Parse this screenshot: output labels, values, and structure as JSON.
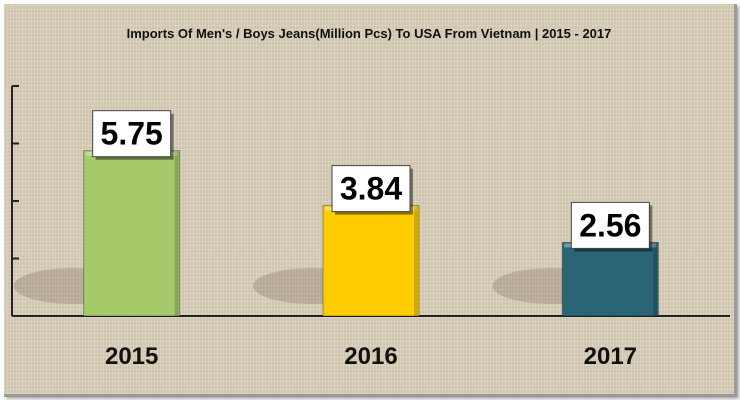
{
  "chart_data": {
    "type": "bar",
    "title": "Imports Of Men's / Boys Jeans(Million Pcs) To USA From Vietnam | 2015 - 2017",
    "xlabel": "",
    "ylabel": "",
    "categories": [
      "2015",
      "2016",
      "2017"
    ],
    "values": [
      5.75,
      3.84,
      2.56
    ],
    "value_labels": [
      "5.75",
      "3.84",
      "2.56"
    ],
    "ylim": [
      0,
      8
    ],
    "grid": false,
    "legend": "none",
    "colors": [
      "#a6c96a",
      "#ffcc00",
      "#2a6575"
    ],
    "background": "#ddd3bd"
  }
}
